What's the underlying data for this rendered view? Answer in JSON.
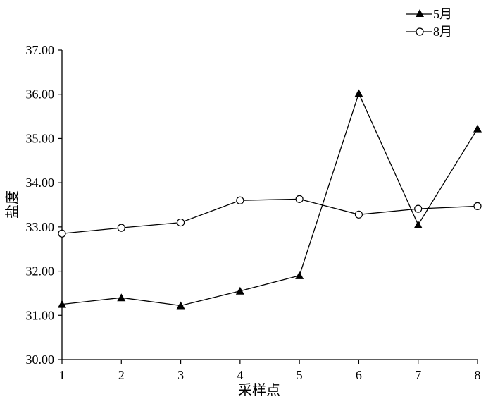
{
  "chart_data": {
    "type": "line",
    "xlabel": "采样点",
    "ylabel": "盐度",
    "x": [
      1,
      2,
      3,
      4,
      5,
      6,
      7,
      8
    ],
    "xlim": [
      1,
      8
    ],
    "ylim": [
      30,
      37
    ],
    "x_ticks": [
      "1",
      "2",
      "3",
      "4",
      "5",
      "6",
      "7",
      "8"
    ],
    "y_ticks": [
      "30.00",
      "31.00",
      "32.00",
      "33.00",
      "34.00",
      "35.00",
      "36.00",
      "37.00"
    ],
    "grid": false,
    "legend_position": "top-right",
    "series": [
      {
        "name": "5月",
        "marker": "filled-triangle",
        "values": [
          31.25,
          31.4,
          31.22,
          31.55,
          31.9,
          36.02,
          33.05,
          35.22
        ]
      },
      {
        "name": "8月",
        "marker": "open-circle",
        "values": [
          32.85,
          32.98,
          33.1,
          33.6,
          33.63,
          33.28,
          33.41,
          33.47
        ]
      }
    ]
  }
}
